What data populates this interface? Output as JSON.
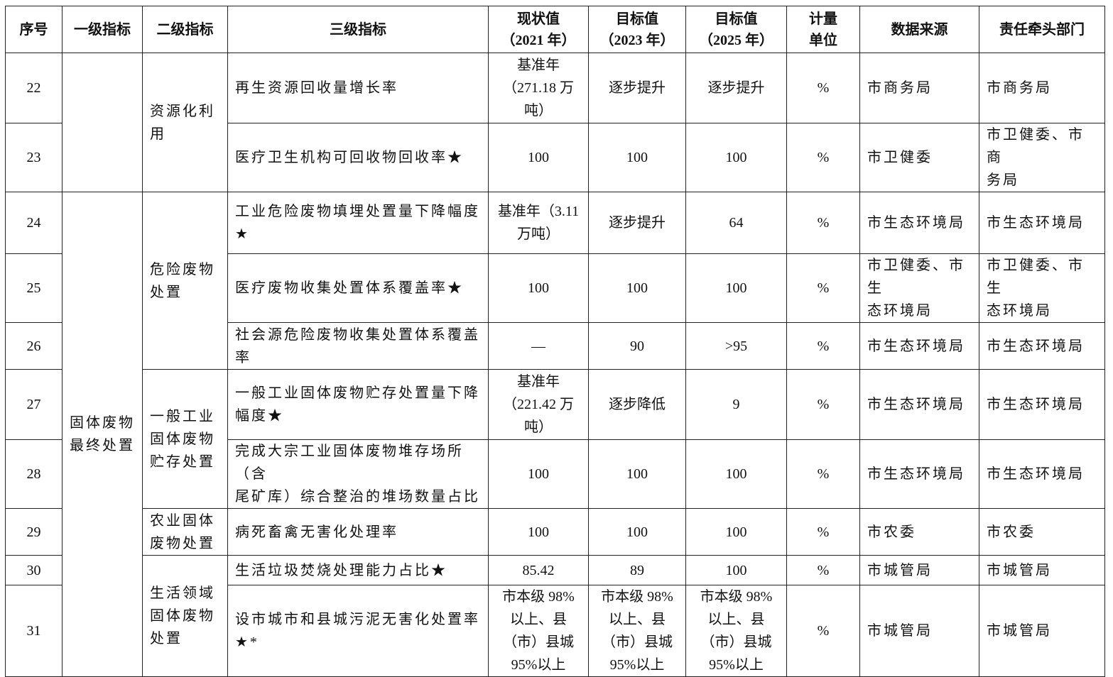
{
  "headers": [
    "序号",
    "一级指标",
    "二级指标",
    "三级指标",
    "现状值\n（2021 年）",
    "目标值\n（2023 年）",
    "目标值\n（2025 年）",
    "计量\n单位",
    "数据来源",
    "责任牵头部门"
  ],
  "level1": [
    "",
    "固体废物\n最终处置"
  ],
  "level2": [
    "资源化利\n用",
    "危险废物\n处置",
    "一般工业\n固体废物\n贮存处置",
    "农业固体\n废物处置",
    "生活领域\n固体废物\n处置"
  ],
  "rows": [
    {
      "no": "22",
      "indicator": "再生资源回收量增长率",
      "current": "基准年\n（271.18 万\n吨）",
      "target2023": "逐步提升",
      "target2025": "逐步提升",
      "unit": "%",
      "source": "市商务局",
      "dept": "市商务局"
    },
    {
      "no": "23",
      "indicator": "医疗卫生机构可回收物回收率★",
      "current": "100",
      "target2023": "100",
      "target2025": "100",
      "unit": "%",
      "source": "市卫健委",
      "dept": "市卫健委、市商\n务局"
    },
    {
      "no": "24",
      "indicator": "工业危险废物填埋处置量下降幅度\n★",
      "current": "基准年（3.11\n万吨）",
      "target2023": "逐步提升",
      "target2025": "64",
      "unit": "%",
      "source": "市生态环境局",
      "dept": "市生态环境局"
    },
    {
      "no": "25",
      "indicator": "医疗废物收集处置体系覆盖率★",
      "current": "100",
      "target2023": "100",
      "target2025": "100",
      "unit": "%",
      "source": "市卫健委、市生\n态环境局",
      "dept": "市卫健委、市生\n态环境局"
    },
    {
      "no": "26",
      "indicator": "社会源危险废物收集处置体系覆盖\n率",
      "current": "—",
      "target2023": "90",
      "target2025": ">95",
      "unit": "%",
      "source": "市生态环境局",
      "dept": "市生态环境局"
    },
    {
      "no": "27",
      "indicator": "一般工业固体废物贮存处置量下降\n幅度★",
      "current": "基准年\n（221.42 万\n吨）",
      "target2023": "逐步降低",
      "target2025": "9",
      "unit": "%",
      "source": "市生态环境局",
      "dept": "市生态环境局"
    },
    {
      "no": "28",
      "indicator": "完成大宗工业固体废物堆存场所（含\n尾矿库）综合整治的堆场数量占比",
      "current": "100",
      "target2023": "100",
      "target2025": "100",
      "unit": "%",
      "source": "市生态环境局",
      "dept": "市生态环境局"
    },
    {
      "no": "29",
      "indicator": "病死畜禽无害化处理率",
      "current": "100",
      "target2023": "100",
      "target2025": "100",
      "unit": "%",
      "source": "市农委",
      "dept": "市农委"
    },
    {
      "no": "30",
      "indicator": "生活垃圾焚烧处理能力占比★",
      "current": "85.42",
      "target2023": "89",
      "target2025": "100",
      "unit": "%",
      "source": "市城管局",
      "dept": "市城管局"
    },
    {
      "no": "31",
      "indicator": "设市城市和县城污泥无害化处置率\n★*",
      "current": "市本级 98%\n以上、县\n（市）县城\n95%以上",
      "target2023": "市本级 98%\n以上、县\n（市）县城\n95%以上",
      "target2025": "市本级 98%\n以上、县\n（市）县城\n95%以上",
      "unit": "%",
      "source": "市城管局",
      "dept": "市城管局"
    }
  ]
}
